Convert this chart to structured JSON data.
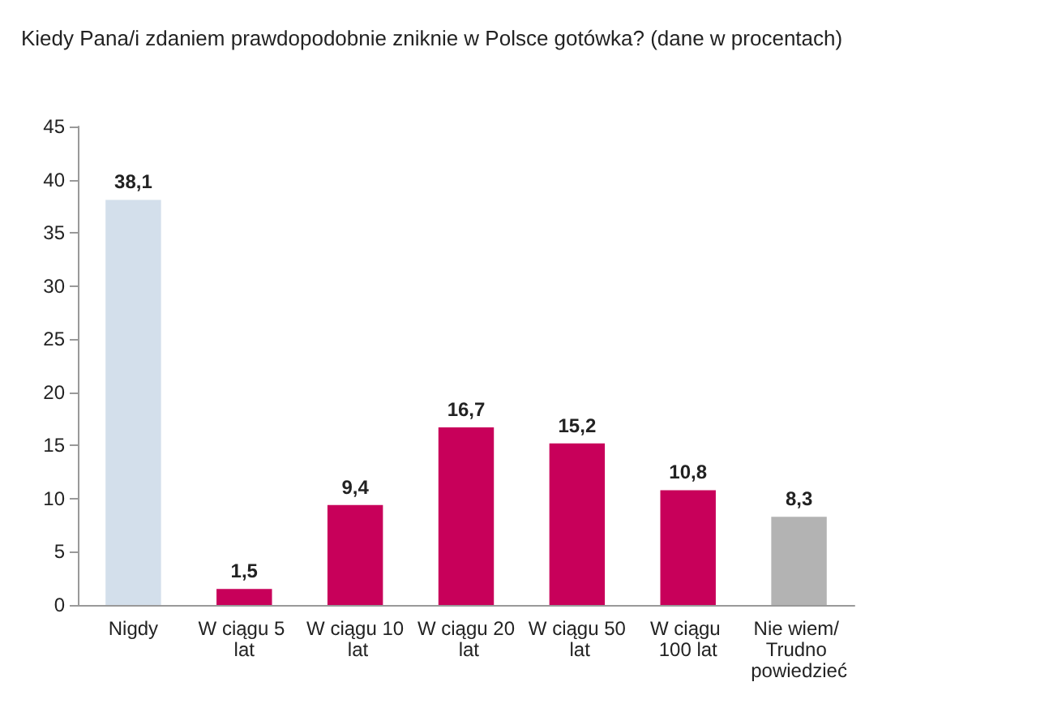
{
  "chart_data": {
    "type": "bar",
    "title": "Kiedy Pana/i zdaniem prawdopodobnie zniknie w Polsce gotówka? (dane w procentach)",
    "categories": [
      "Nigdy",
      "W ciągu 5 lat",
      "W ciągu 10 lat",
      "W ciągu 20 lat",
      "W ciągu 50 lat",
      "W ciągu 100 lat",
      "Nie wiem/ Trudno powiedzieć"
    ],
    "values": [
      38.1,
      1.5,
      9.4,
      16.7,
      15.2,
      10.8,
      8.3
    ],
    "value_labels": [
      "38,1",
      "1,5",
      "9,4",
      "16,7",
      "15,2",
      "10,8",
      "8,3"
    ],
    "colors": [
      "#d3dfeb",
      "#c8005a",
      "#c8005a",
      "#c8005a",
      "#c8005a",
      "#c8005a",
      "#b3b3b3"
    ],
    "ylim": [
      0,
      45
    ],
    "yticks": [
      0,
      5,
      10,
      15,
      20,
      25,
      30,
      35,
      40,
      45
    ],
    "grid": false
  }
}
